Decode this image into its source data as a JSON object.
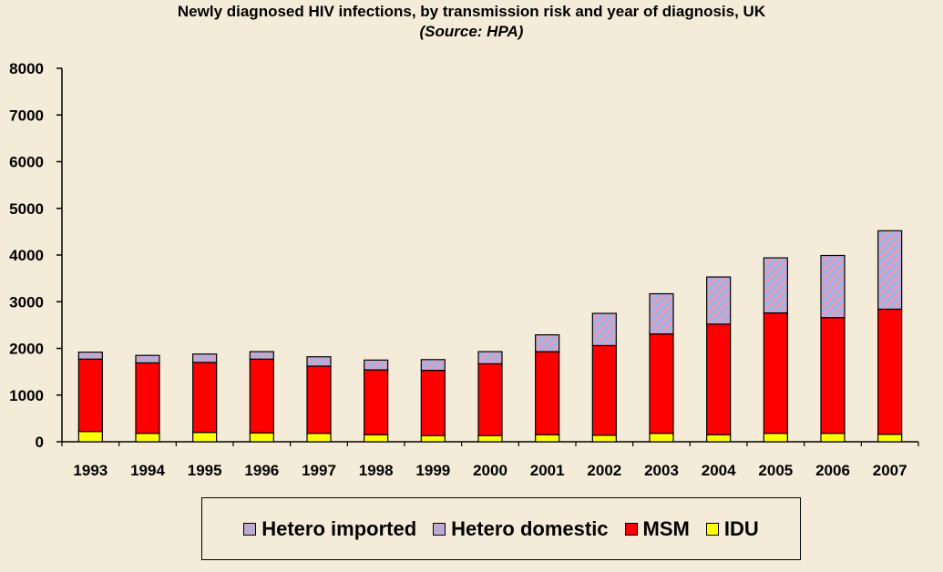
{
  "chart_data": {
    "type": "bar",
    "stacked": true,
    "title": "Newly diagnosed HIV infections, by transmission risk and year of diagnosis, UK",
    "subtitle": "(Source: HPA)",
    "categories": [
      "1993",
      "1994",
      "1995",
      "1996",
      "1997",
      "1998",
      "1999",
      "2000",
      "2001",
      "2002",
      "2003",
      "2004",
      "2005",
      "2006",
      "2007"
    ],
    "series": [
      {
        "name": "IDU",
        "color": "#ffff00",
        "values": [
          220,
          180,
          200,
          190,
          180,
          150,
          130,
          130,
          150,
          140,
          180,
          150,
          180,
          180,
          160
        ]
      },
      {
        "name": "MSM",
        "color": "#ff0000",
        "values": [
          1550,
          1510,
          1500,
          1580,
          1440,
          1390,
          1400,
          1540,
          1780,
          1920,
          2130,
          2370,
          2580,
          2480,
          2680
        ]
      },
      {
        "name": "Hetero domestic / imported",
        "legend_names": [
          "Hetero imported",
          "Hetero domestic"
        ],
        "pattern": "hatched",
        "colors": [
          "#9fb4e6",
          "#e79bb7"
        ],
        "values": [
          150,
          160,
          180,
          160,
          200,
          210,
          230,
          260,
          360,
          690,
          860,
          1010,
          1180,
          1330,
          1680
        ]
      }
    ],
    "legend": [
      "Hetero imported",
      "Hetero domestic",
      "MSM",
      "IDU"
    ],
    "ylim": [
      0,
      8000
    ],
    "yticks": [
      "0",
      "1000",
      "2000",
      "3000",
      "4000",
      "5000",
      "6000",
      "7000",
      "8000"
    ],
    "grid": false,
    "legend_position": "bottom"
  }
}
